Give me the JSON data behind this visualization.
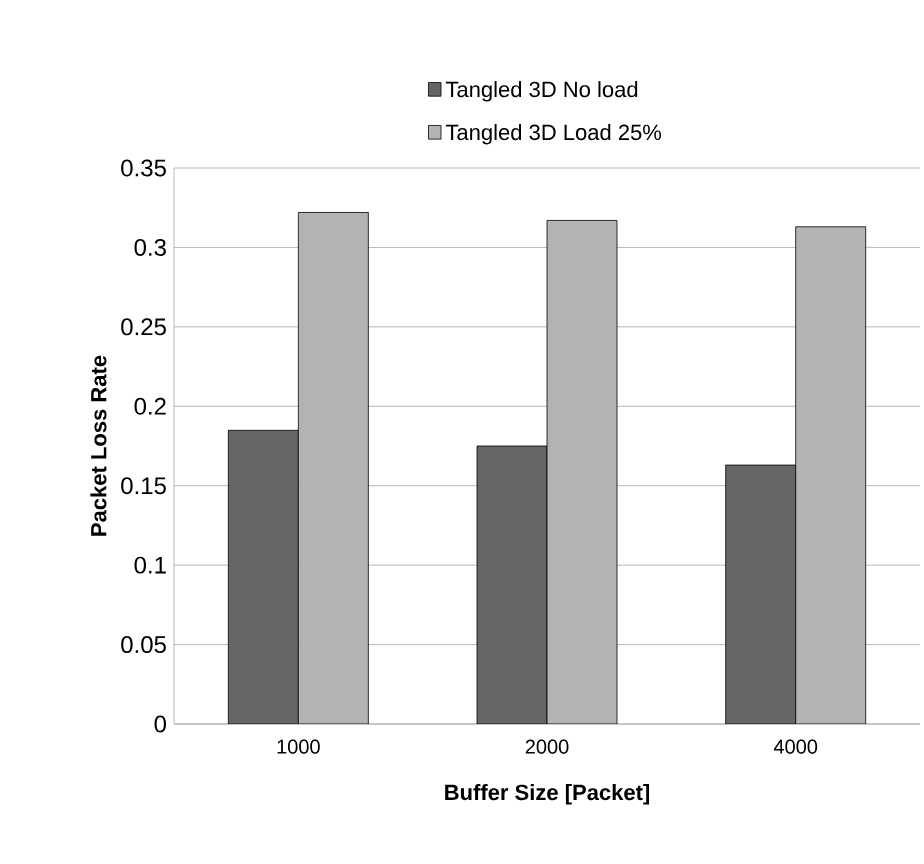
{
  "chart_data": {
    "type": "bar",
    "xlabel": "Buffer Size [Packet]",
    "ylabel": "Packet Loss Rate",
    "categories": [
      "1000",
      "2000",
      "4000"
    ],
    "series": [
      {
        "name": "Tangled 3D No load",
        "color": "#666666",
        "values": [
          0.185,
          0.175,
          0.163
        ]
      },
      {
        "name": "Tangled 3D Load 25%",
        "color": "#b3b3b3",
        "values": [
          0.322,
          0.317,
          0.313
        ]
      }
    ],
    "ylim": [
      0,
      0.35
    ],
    "yticks": [
      0,
      0.05,
      0.1,
      0.15,
      0.2,
      0.25,
      0.3,
      0.35
    ],
    "grid": "y",
    "legend": "top"
  }
}
